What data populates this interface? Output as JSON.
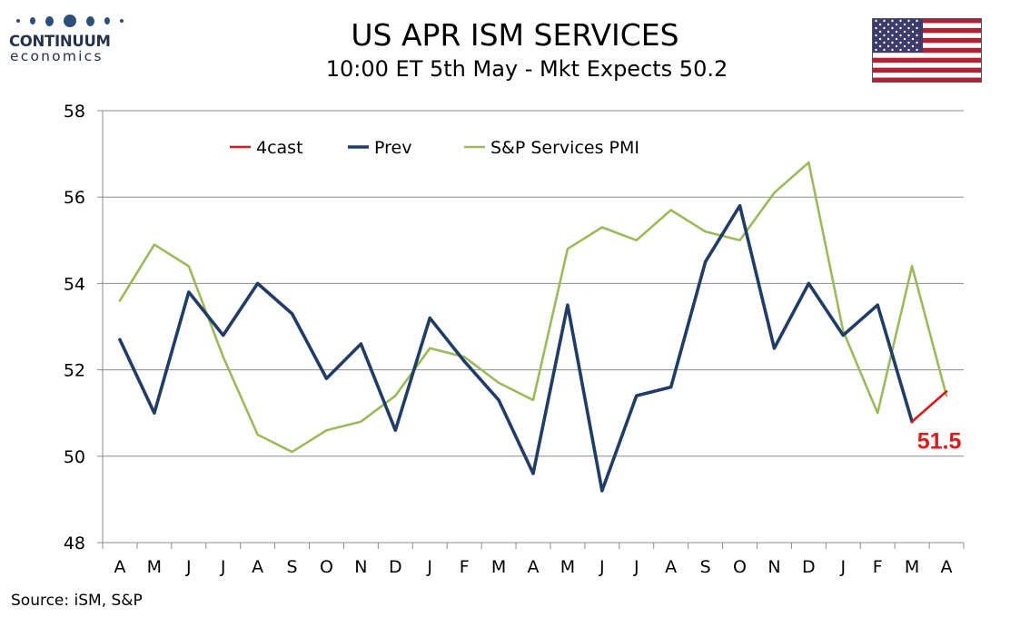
{
  "logo": {
    "name": "CONTINUUM",
    "sub": "economics"
  },
  "title": "US APR ISM SERVICES",
  "subtitle": "10:00 ET 5th May - Mkt Expects 50.2",
  "source": "Source: iSM, S&P",
  "flag": {
    "stripe_red": "#b22234",
    "stripe_white": "#ffffff",
    "canton": "#3c3b6e"
  },
  "chart_data": {
    "type": "line",
    "title": "",
    "xlabel": "",
    "ylabel": "",
    "ylim": [
      48,
      58
    ],
    "yticks": [
      48,
      50,
      52,
      54,
      56,
      58
    ],
    "grid": "horizontal",
    "legend_position": "top",
    "categories": [
      "A",
      "M",
      "J",
      "J",
      "A",
      "S",
      "O",
      "N",
      "D",
      "J",
      "F",
      "M",
      "A",
      "M",
      "J",
      "J",
      "A",
      "S",
      "O",
      "N",
      "D",
      "J",
      "F",
      "M",
      "A"
    ],
    "series": [
      {
        "name": "4cast",
        "color": "#e0191b",
        "values": [
          null,
          null,
          null,
          null,
          null,
          null,
          null,
          null,
          null,
          null,
          null,
          null,
          null,
          null,
          null,
          null,
          null,
          null,
          null,
          null,
          null,
          null,
          null,
          50.8,
          51.5
        ]
      },
      {
        "name": "Prev",
        "color": "#1f3d68",
        "values": [
          52.7,
          51.0,
          53.8,
          52.8,
          54.0,
          53.3,
          51.8,
          52.6,
          50.6,
          53.2,
          52.2,
          51.3,
          49.6,
          53.5,
          49.2,
          51.4,
          51.6,
          54.5,
          55.8,
          52.5,
          54.0,
          52.8,
          53.5,
          50.8,
          null
        ]
      },
      {
        "name": "S&P Services PMI",
        "color": "#9bbb59",
        "values": [
          53.6,
          54.9,
          54.4,
          52.3,
          50.5,
          50.1,
          50.6,
          50.8,
          51.4,
          52.5,
          52.3,
          51.7,
          51.3,
          54.8,
          55.3,
          55.0,
          55.7,
          55.2,
          55.0,
          56.1,
          56.8,
          52.9,
          51.0,
          54.4,
          51.4
        ]
      }
    ],
    "annotation": {
      "text": "51.5",
      "color": "#e0191b"
    }
  }
}
